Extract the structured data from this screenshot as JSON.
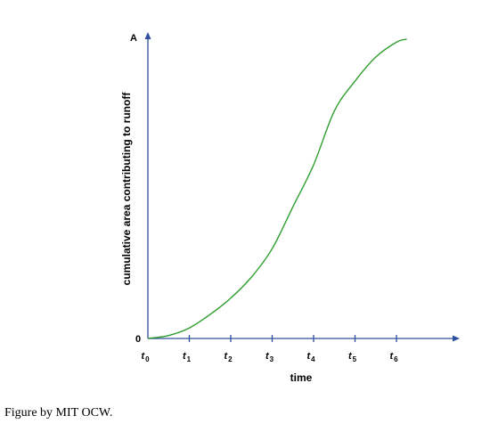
{
  "chart_data": {
    "type": "line",
    "xlabel": "time",
    "ylabel": "cumulative area contributing to runoff",
    "y_axis_top_label": "A",
    "y_axis_origin_label": "0",
    "x_ticks": [
      {
        "base": "t",
        "sub": "0",
        "x": 0
      },
      {
        "base": "t",
        "sub": "1",
        "x": 1
      },
      {
        "base": "t",
        "sub": "2",
        "x": 2
      },
      {
        "base": "t",
        "sub": "3",
        "x": 3
      },
      {
        "base": "t",
        "sub": "4",
        "x": 4
      },
      {
        "base": "t",
        "sub": "5",
        "x": 5
      },
      {
        "base": "t",
        "sub": "6",
        "x": 6
      }
    ],
    "xlim": [
      0,
      8.3
    ],
    "ylim": [
      0,
      1
    ],
    "grid": false,
    "series": [
      {
        "color": "#2e9e2e",
        "points": [
          [
            0,
            0
          ],
          [
            0.5,
            0.01
          ],
          [
            1,
            0.035
          ],
          [
            1.5,
            0.08
          ],
          [
            2,
            0.135
          ],
          [
            2.5,
            0.205
          ],
          [
            3,
            0.3
          ],
          [
            3.5,
            0.44
          ],
          [
            4,
            0.58
          ],
          [
            4.5,
            0.76
          ],
          [
            5,
            0.86
          ],
          [
            5.5,
            0.94
          ],
          [
            6,
            0.99
          ],
          [
            6.25,
            1.0
          ]
        ]
      }
    ]
  },
  "caption": "Figure by MIT OCW."
}
